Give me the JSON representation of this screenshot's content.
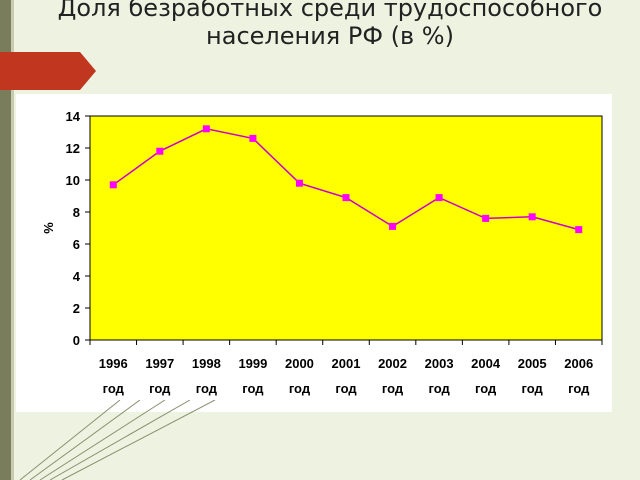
{
  "slide": {
    "title_line1": "Доля безработных среди трудоспособного",
    "title_line2": "населения   РФ (в %)"
  },
  "colors": {
    "plot_background": "#ffff00",
    "line": "#cc00cc",
    "marker": "#ff00ff",
    "accent_arrow": "#c0361f"
  },
  "chart_data": {
    "type": "line",
    "categories": [
      "1996 год",
      "1997 год",
      "1998 год",
      "1999 год",
      "2000 год",
      "2001 год",
      "2002 год",
      "2003 год",
      "2004 год",
      "2005 год",
      "2006 год"
    ],
    "x_tick_lines": [
      [
        "1996",
        "год"
      ],
      [
        "1997",
        "год"
      ],
      [
        "1998",
        "год"
      ],
      [
        "1999",
        "год"
      ],
      [
        "2000",
        "год"
      ],
      [
        "2001",
        "год"
      ],
      [
        "2002",
        "год"
      ],
      [
        "2003",
        "год"
      ],
      [
        "2004",
        "год"
      ],
      [
        "2005",
        "год"
      ],
      [
        "2006",
        "год"
      ]
    ],
    "series": [
      {
        "values": [
          9.7,
          11.8,
          13.2,
          12.6,
          9.8,
          8.9,
          7.1,
          8.9,
          7.6,
          7.7,
          6.9
        ]
      }
    ],
    "ylabel": "%",
    "xlabel": "",
    "ylim": [
      0,
      14
    ],
    "yticks": [
      0,
      2,
      4,
      6,
      8,
      10,
      12,
      14
    ],
    "grid": false,
    "legend": "none"
  }
}
